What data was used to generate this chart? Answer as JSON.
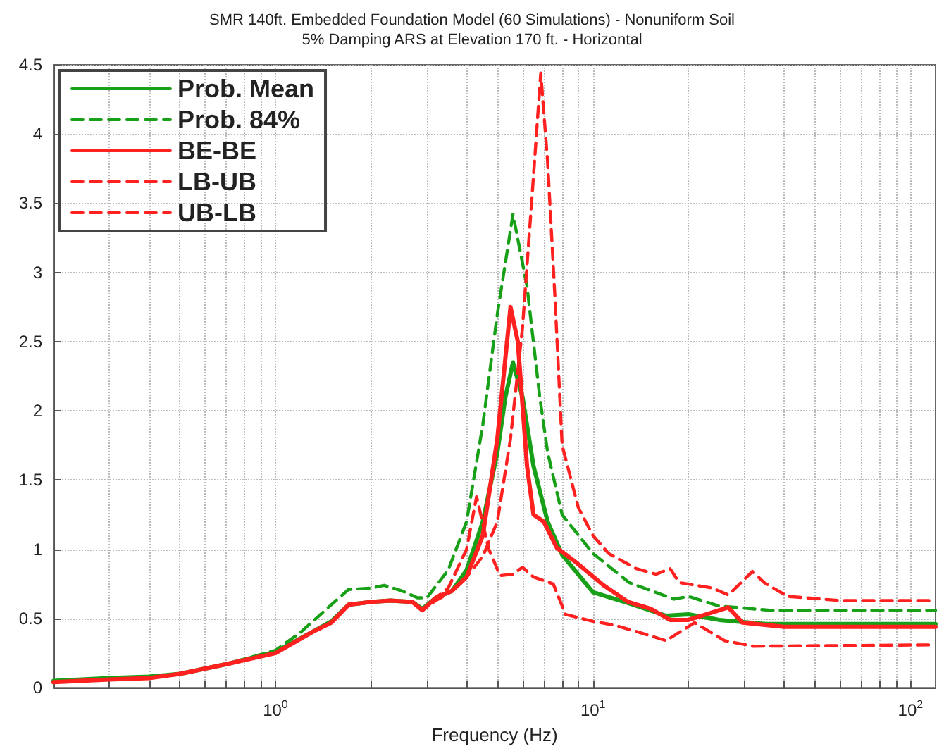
{
  "chart_data": {
    "type": "line",
    "title": "SMR 140ft. Embedded Foundation Model (60 Simulations) - Nonuniform Soil",
    "subtitle": "5% Damping ARS at Elevation 170 ft. - Horizontal",
    "xlabel": "Frequency (Hz)",
    "log": "x",
    "grid": true,
    "legend": "top left",
    "marker": "none",
    "xlim": [
      0.2,
      120
    ],
    "xticks": [
      {
        "value": 0.2,
        "label": null
      },
      {
        "value": 0.3,
        "label": null
      },
      {
        "value": 0.4,
        "label": null
      },
      {
        "value": 0.5,
        "label": null
      },
      {
        "value": 0.6,
        "label": null
      },
      {
        "value": 0.7,
        "label": null
      },
      {
        "value": 0.8,
        "label": null
      },
      {
        "value": 0.9,
        "label": null
      },
      {
        "value": 1,
        "label": "10$^{0}$"
      },
      {
        "value": 2,
        "label": null
      },
      {
        "value": 3,
        "label": null
      },
      {
        "value": 4,
        "label": null
      },
      {
        "value": 5,
        "label": null
      },
      {
        "value": 6,
        "label": null
      },
      {
        "value": 7,
        "label": null
      },
      {
        "value": 8,
        "label": null
      },
      {
        "value": 9,
        "label": null
      },
      {
        "value": 10,
        "label": "10$^{1}$"
      },
      {
        "value": 20,
        "label": null
      },
      {
        "value": 30,
        "label": null
      },
      {
        "value": 40,
        "label": null
      },
      {
        "value": 50,
        "label": null
      },
      {
        "value": 60,
        "label": null
      },
      {
        "value": 70,
        "label": null
      },
      {
        "value": 80,
        "label": null
      },
      {
        "value": 90,
        "label": null
      },
      {
        "value": 100,
        "label": "10$^{2}$"
      }
    ],
    "ylim": [
      0,
      4.5
    ],
    "yticks": [
      0,
      0.5,
      1,
      1.5,
      2,
      2.5,
      3,
      3.5,
      4,
      4.5
    ],
    "series": [
      {
        "name": "Prob. Mean",
        "color": "#18a018",
        "line_style": "solid",
        "x": [
          0.2,
          0.3,
          0.4,
          0.5,
          0.7,
          1,
          1.3,
          1.5,
          1.7,
          2,
          2.3,
          2.7,
          2.9,
          3.2,
          3.6,
          4,
          4.5,
          5,
          5.3,
          5.6,
          6,
          6.5,
          7.2,
          8,
          10,
          13,
          17,
          20,
          25,
          35,
          120
        ],
        "values": [
          0.05,
          0.07,
          0.08,
          0.1,
          0.17,
          0.26,
          0.4,
          0.48,
          0.6,
          0.62,
          0.63,
          0.62,
          0.57,
          0.65,
          0.7,
          0.85,
          1.2,
          1.7,
          2.1,
          2.35,
          2.1,
          1.6,
          1.2,
          0.96,
          0.69,
          0.61,
          0.52,
          0.53,
          0.49,
          0.46,
          0.46
        ]
      },
      {
        "name": "Prob. 84%",
        "color": "#18a018",
        "line_style": "dashed",
        "x": [
          0.2,
          0.3,
          0.4,
          0.5,
          0.7,
          1,
          1.2,
          1.5,
          1.7,
          2,
          2.2,
          2.5,
          2.8,
          3,
          3.5,
          4,
          4.5,
          5,
          5.6,
          6.2,
          6.8,
          7.2,
          8,
          10,
          13,
          18,
          20,
          25,
          36,
          120
        ],
        "values": [
          0.05,
          0.07,
          0.08,
          0.1,
          0.17,
          0.27,
          0.4,
          0.6,
          0.71,
          0.72,
          0.74,
          0.7,
          0.65,
          0.65,
          0.85,
          1.2,
          1.9,
          2.7,
          3.42,
          2.9,
          2.1,
          1.7,
          1.25,
          0.97,
          0.76,
          0.64,
          0.66,
          0.59,
          0.56,
          0.56
        ]
      },
      {
        "name": "BE-BE",
        "color": "#ff2020",
        "line_style": "solid",
        "x": [
          0.2,
          0.3,
          0.4,
          0.5,
          0.7,
          1,
          1.3,
          1.5,
          1.7,
          2,
          2.3,
          2.7,
          2.9,
          3.2,
          3.6,
          4,
          4.5,
          5,
          5.5,
          5.8,
          6.2,
          6.5,
          7,
          7.7,
          8.8,
          10.8,
          12.9,
          15.2,
          17.5,
          20,
          25,
          26.7,
          29.6,
          40,
          120
        ],
        "values": [
          0.04,
          0.06,
          0.07,
          0.1,
          0.17,
          0.25,
          0.4,
          0.47,
          0.6,
          0.62,
          0.63,
          0.62,
          0.56,
          0.65,
          0.7,
          0.8,
          1.1,
          1.8,
          2.75,
          2.5,
          1.6,
          1.25,
          1.2,
          1.01,
          0.91,
          0.74,
          0.62,
          0.57,
          0.49,
          0.49,
          0.56,
          0.58,
          0.47,
          0.44,
          0.44
        ]
      },
      {
        "name": "LB-UB",
        "color": "#ff2020",
        "line_style": "dashed",
        "x": [
          0.2,
          0.3,
          0.4,
          0.5,
          0.7,
          1,
          1.3,
          1.5,
          1.7,
          2,
          2.3,
          2.7,
          2.9,
          3.2,
          3.5,
          4,
          4.5,
          5,
          5.5,
          6,
          6.5,
          6.85,
          7.2,
          7.6,
          8,
          9,
          10,
          11.2,
          13.7,
          15.8,
          17.5,
          18.7,
          23.8,
          26.7,
          31.8,
          34.6,
          41,
          60,
          120
        ],
        "values": [
          0.04,
          0.06,
          0.07,
          0.1,
          0.17,
          0.25,
          0.4,
          0.47,
          0.6,
          0.62,
          0.63,
          0.62,
          0.56,
          0.63,
          0.68,
          0.8,
          0.95,
          1.2,
          1.8,
          2.6,
          3.7,
          4.44,
          3.8,
          2.8,
          1.75,
          1.3,
          1.1,
          0.97,
          0.86,
          0.82,
          0.86,
          0.76,
          0.72,
          0.67,
          0.84,
          0.76,
          0.66,
          0.63,
          0.63
        ]
      },
      {
        "name": "UB-LB",
        "color": "#ff2020",
        "line_style": "dashed",
        "x": [
          0.2,
          0.3,
          0.4,
          0.5,
          0.7,
          1,
          1.3,
          1.5,
          1.7,
          2,
          2.3,
          2.7,
          2.9,
          3.2,
          3.5,
          4,
          4.3,
          4.7,
          5.1,
          5.6,
          6,
          6.5,
          7.5,
          8.2,
          10,
          11.8,
          14,
          17,
          20.9,
          26,
          32,
          120
        ],
        "values": [
          0.04,
          0.06,
          0.07,
          0.1,
          0.17,
          0.25,
          0.4,
          0.47,
          0.6,
          0.62,
          0.63,
          0.62,
          0.56,
          0.65,
          0.72,
          1.0,
          1.38,
          1.0,
          0.81,
          0.82,
          0.87,
          0.8,
          0.75,
          0.53,
          0.48,
          0.45,
          0.4,
          0.34,
          0.47,
          0.34,
          0.3,
          0.31
        ]
      }
    ]
  }
}
